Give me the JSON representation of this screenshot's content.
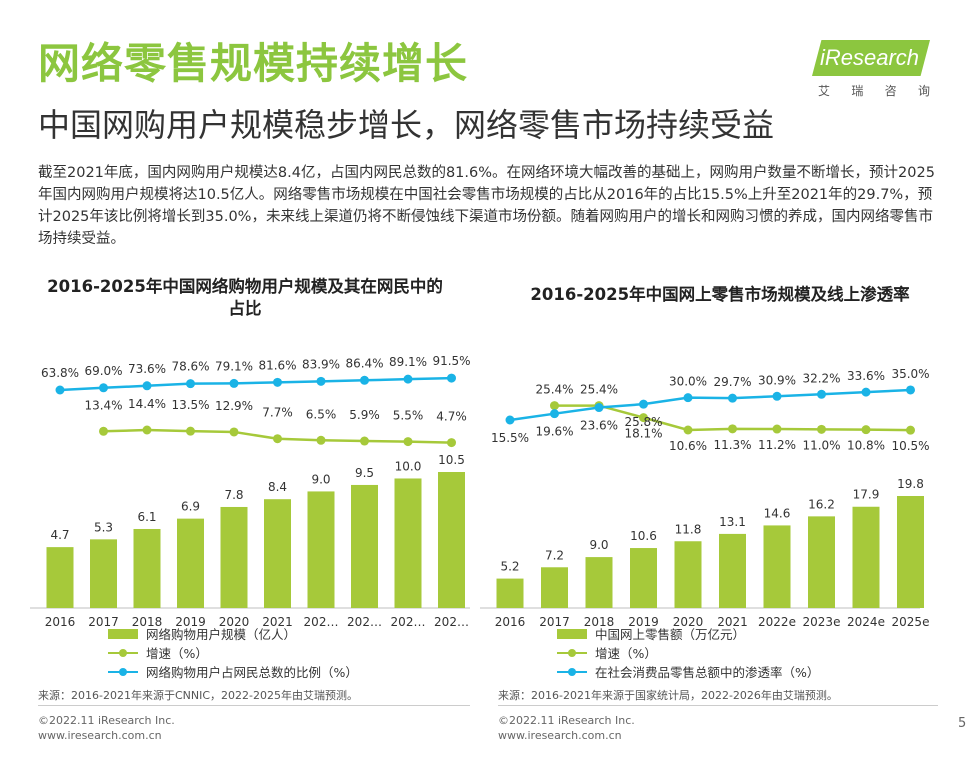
{
  "header": {
    "title": "网络零售规模持续增长",
    "subtitle": "中国网购用户规模稳步增长，网络零售市场持续受益"
  },
  "logo": {
    "name": "iResearch",
    "sub": [
      "艾",
      "瑞",
      "咨",
      "询"
    ]
  },
  "intro": "截至2021年底，国内网购用户规模达8.4亿，占国内网民总数的81.6%。在网络环境大幅改善的基础上，网购用户数量不断增长，预计2025年国内网购用户规模将达10.5亿人。网络零售市场规模在中国社会零售市场规模的占比从2016年的占比15.5%上升至2021年的29.7%，预计2025年该比例将增长到35.0%，未来线上渠道仍将不断侵蚀线下渠道市场份额。随着网购用户的增长和网购习惯的养成，国内网络零售市场持续受益。",
  "colors": {
    "accent": "#8cc63f",
    "bar": "#a6c93a",
    "growth": "#a6c93a",
    "ratio": "#1ab3e6"
  },
  "chart_data": [
    {
      "type": "bar",
      "title": "2016-2025年中国网络购物用户规模及其在网民中的占比",
      "categories": [
        "2016",
        "2017",
        "2018",
        "2019",
        "2020",
        "2021",
        "202…",
        "202…",
        "202…",
        "202…"
      ],
      "series": [
        {
          "name": "网络购物用户规模（亿人）",
          "type": "bar",
          "values": [
            4.7,
            5.3,
            6.1,
            6.9,
            7.8,
            8.4,
            9.0,
            9.5,
            10.0,
            10.5
          ],
          "labels": [
            "4.7",
            "5.3",
            "6.1",
            "6.9",
            "7.8",
            "8.4",
            "9.0",
            "9.5",
            "10.0",
            "10.5"
          ]
        },
        {
          "name": "增速（%）",
          "type": "line",
          "values": [
            null,
            13.4,
            14.4,
            13.5,
            12.9,
            7.7,
            6.5,
            5.9,
            5.5,
            4.7
          ],
          "labels": [
            null,
            "13.4%",
            "14.4%",
            "13.5%",
            "12.9%",
            "7.7%",
            "6.5%",
            "5.9%",
            "5.5%",
            "4.7%"
          ]
        },
        {
          "name": "网络购物用户占网民总数的比例（%）",
          "type": "line",
          "values": [
            63.8,
            69.0,
            73.6,
            78.6,
            79.1,
            81.6,
            83.9,
            86.4,
            89.1,
            91.5
          ],
          "labels": [
            "63.8%",
            "69.0%",
            "73.6%",
            "78.6%",
            "79.1%",
            "81.6%",
            "83.9%",
            "86.4%",
            "89.1%",
            "91.5%"
          ]
        }
      ],
      "legend_position": "bottom"
    },
    {
      "type": "bar",
      "title": "2016-2025年中国网上零售市场规模及线上渗透率",
      "categories": [
        "2016",
        "2017",
        "2018",
        "2019",
        "2020",
        "2021",
        "2022e",
        "2023e",
        "2024e",
        "2025e"
      ],
      "series": [
        {
          "name": "中国网上零售额（万亿元）",
          "type": "bar",
          "values": [
            5.2,
            7.2,
            9.0,
            10.6,
            11.8,
            13.1,
            14.6,
            16.2,
            17.9,
            19.8
          ],
          "labels": [
            "5.2",
            "7.2",
            "9.0",
            "10.6",
            "11.8",
            "13.1",
            "14.6",
            "16.2",
            "17.9",
            "19.8"
          ]
        },
        {
          "name": "增速（%）",
          "type": "line",
          "values": [
            null,
            25.4,
            25.4,
            18.1,
            10.6,
            11.3,
            11.2,
            11.0,
            10.8,
            10.5
          ],
          "labels": [
            null,
            "25.4%",
            "25.4%",
            "18.1%",
            "10.6%",
            "11.3%",
            "11.2%",
            "11.0%",
            "10.8%",
            "10.5%"
          ]
        },
        {
          "name": "在社会消费品零售总额中的渗透率（%）",
          "type": "line",
          "values": [
            15.5,
            19.6,
            23.6,
            25.8,
            30.0,
            29.7,
            30.9,
            32.2,
            33.6,
            35.0
          ],
          "labels": [
            "15.5%",
            "19.6%",
            "23.6%",
            "25.8%",
            "30.0%",
            "29.7%",
            "30.9%",
            "32.2%",
            "33.6%",
            "35.0%"
          ]
        }
      ],
      "legend_position": "bottom"
    }
  ],
  "sources": {
    "left": "来源：2016-2021年来源于CNNIC，2022-2025年由艾瑞预测。",
    "right": "来源：2016-2021年来源于国家统计局，2022-2026年由艾瑞预测。"
  },
  "footer": {
    "copyright": "©2022.11 iResearch Inc.",
    "url": "www.iresearch.com.cn",
    "page": "5"
  }
}
